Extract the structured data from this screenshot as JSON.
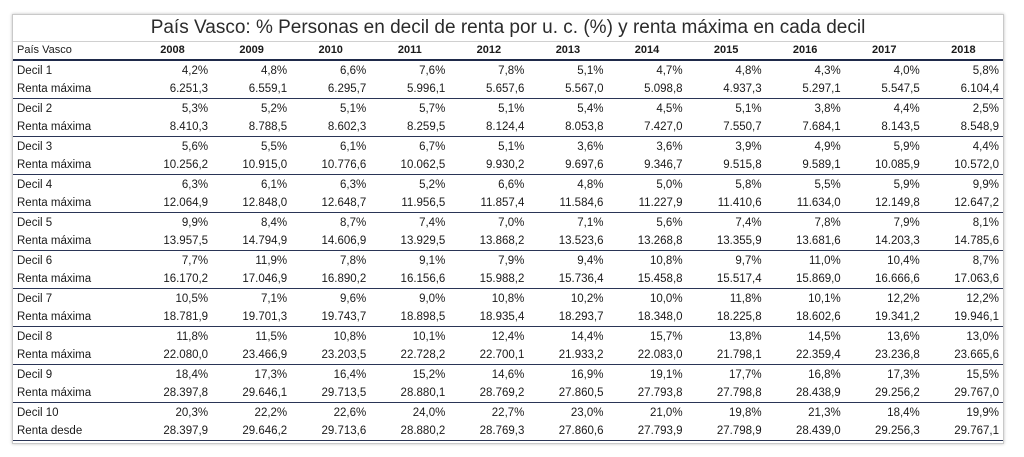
{
  "title": "País Vasco: % Personas en decil de renta por u. c. (%) y renta máxima en cada decil",
  "header": {
    "region": "País Vasco",
    "years": [
      "2008",
      "2009",
      "2010",
      "2011",
      "2012",
      "2013",
      "2014",
      "2015",
      "2016",
      "2017",
      "2018"
    ]
  },
  "rows": [
    {
      "label": "Decil 1",
      "values": [
        "4,2%",
        "4,8%",
        "6,6%",
        "7,6%",
        "7,8%",
        "5,1%",
        "4,7%",
        "4,8%",
        "4,3%",
        "4,0%",
        "5,8%"
      ]
    },
    {
      "label": "Renta máxima",
      "values": [
        "6.251,3",
        "6.559,1",
        "6.295,7",
        "5.996,1",
        "5.657,6",
        "5.567,0",
        "5.098,8",
        "4.937,3",
        "5.297,1",
        "5.547,5",
        "6.104,4"
      ]
    },
    {
      "label": "Decil 2",
      "values": [
        "5,3%",
        "5,2%",
        "5,1%",
        "5,7%",
        "5,1%",
        "5,4%",
        "4,5%",
        "5,1%",
        "3,8%",
        "4,4%",
        "2,5%"
      ]
    },
    {
      "label": "Renta máxima",
      "values": [
        "8.410,3",
        "8.788,5",
        "8.602,3",
        "8.259,5",
        "8.124,4",
        "8.053,8",
        "7.427,0",
        "7.550,7",
        "7.684,1",
        "8.143,5",
        "8.548,9"
      ]
    },
    {
      "label": "Decil 3",
      "values": [
        "5,6%",
        "5,5%",
        "6,1%",
        "6,7%",
        "5,1%",
        "3,6%",
        "3,6%",
        "3,9%",
        "4,9%",
        "5,9%",
        "4,4%"
      ]
    },
    {
      "label": "Renta máxima",
      "values": [
        "10.256,2",
        "10.915,0",
        "10.776,6",
        "10.062,5",
        "9.930,2",
        "9.697,6",
        "9.346,7",
        "9.515,8",
        "9.589,1",
        "10.085,9",
        "10.572,0"
      ]
    },
    {
      "label": "Decil 4",
      "values": [
        "6,3%",
        "6,1%",
        "6,3%",
        "5,2%",
        "6,6%",
        "4,8%",
        "5,0%",
        "5,8%",
        "5,5%",
        "5,9%",
        "9,9%"
      ]
    },
    {
      "label": "Renta máxima",
      "values": [
        "12.064,9",
        "12.848,0",
        "12.648,7",
        "11.956,5",
        "11.857,4",
        "11.584,6",
        "11.227,9",
        "11.410,6",
        "11.634,0",
        "12.149,8",
        "12.647,2"
      ]
    },
    {
      "label": "Decil 5",
      "values": [
        "9,9%",
        "8,4%",
        "8,7%",
        "7,4%",
        "7,0%",
        "7,1%",
        "5,6%",
        "7,4%",
        "7,8%",
        "7,9%",
        "8,1%"
      ]
    },
    {
      "label": "Renta máxima",
      "values": [
        "13.957,5",
        "14.794,9",
        "14.606,9",
        "13.929,5",
        "13.868,2",
        "13.523,6",
        "13.268,8",
        "13.355,9",
        "13.681,6",
        "14.203,3",
        "14.785,6"
      ]
    },
    {
      "label": "Decil 6",
      "values": [
        "7,7%",
        "11,9%",
        "7,8%",
        "9,1%",
        "7,9%",
        "9,4%",
        "10,8%",
        "9,7%",
        "11,0%",
        "10,4%",
        "8,7%"
      ]
    },
    {
      "label": "Renta máxima",
      "values": [
        "16.170,2",
        "17.046,9",
        "16.890,2",
        "16.156,6",
        "15.988,2",
        "15.736,4",
        "15.458,8",
        "15.517,4",
        "15.869,0",
        "16.666,6",
        "17.063,6"
      ]
    },
    {
      "label": "Decil 7",
      "values": [
        "10,5%",
        "7,1%",
        "9,6%",
        "9,0%",
        "10,8%",
        "10,2%",
        "10,0%",
        "11,8%",
        "10,1%",
        "12,2%",
        "12,2%"
      ]
    },
    {
      "label": "Renta máxima",
      "values": [
        "18.781,9",
        "19.701,3",
        "19.743,7",
        "18.898,5",
        "18.935,4",
        "18.293,7",
        "18.348,0",
        "18.225,8",
        "18.602,6",
        "19.341,2",
        "19.946,1"
      ]
    },
    {
      "label": "Decil 8",
      "values": [
        "11,8%",
        "11,5%",
        "10,8%",
        "10,1%",
        "12,4%",
        "14,4%",
        "15,7%",
        "13,8%",
        "14,5%",
        "13,6%",
        "13,0%"
      ]
    },
    {
      "label": "Renta máxima",
      "values": [
        "22.080,0",
        "23.466,9",
        "23.203,5",
        "22.728,2",
        "22.700,1",
        "21.933,2",
        "22.083,0",
        "21.798,1",
        "22.359,4",
        "23.236,8",
        "23.665,6"
      ]
    },
    {
      "label": "Decil 9",
      "values": [
        "18,4%",
        "17,3%",
        "16,4%",
        "15,2%",
        "14,6%",
        "16,9%",
        "19,1%",
        "17,7%",
        "16,8%",
        "17,3%",
        "15,5%"
      ]
    },
    {
      "label": "Renta máxima",
      "values": [
        "28.397,8",
        "29.646,1",
        "29.713,5",
        "28.880,1",
        "28.769,2",
        "27.860,5",
        "27.793,8",
        "27.798,8",
        "28.438,9",
        "29.256,2",
        "29.767,0"
      ]
    },
    {
      "label": "Decil 10",
      "values": [
        "20,3%",
        "22,2%",
        "22,6%",
        "24,0%",
        "22,7%",
        "23,0%",
        "21,0%",
        "19,8%",
        "21,3%",
        "18,4%",
        "19,9%"
      ]
    },
    {
      "label": "Renta desde",
      "values": [
        "28.397,9",
        "29.646,2",
        "29.713,6",
        "28.880,2",
        "28.769,3",
        "27.860,6",
        "27.793,9",
        "27.798,9",
        "28.439,0",
        "29.256,3",
        "29.767,1"
      ]
    }
  ]
}
